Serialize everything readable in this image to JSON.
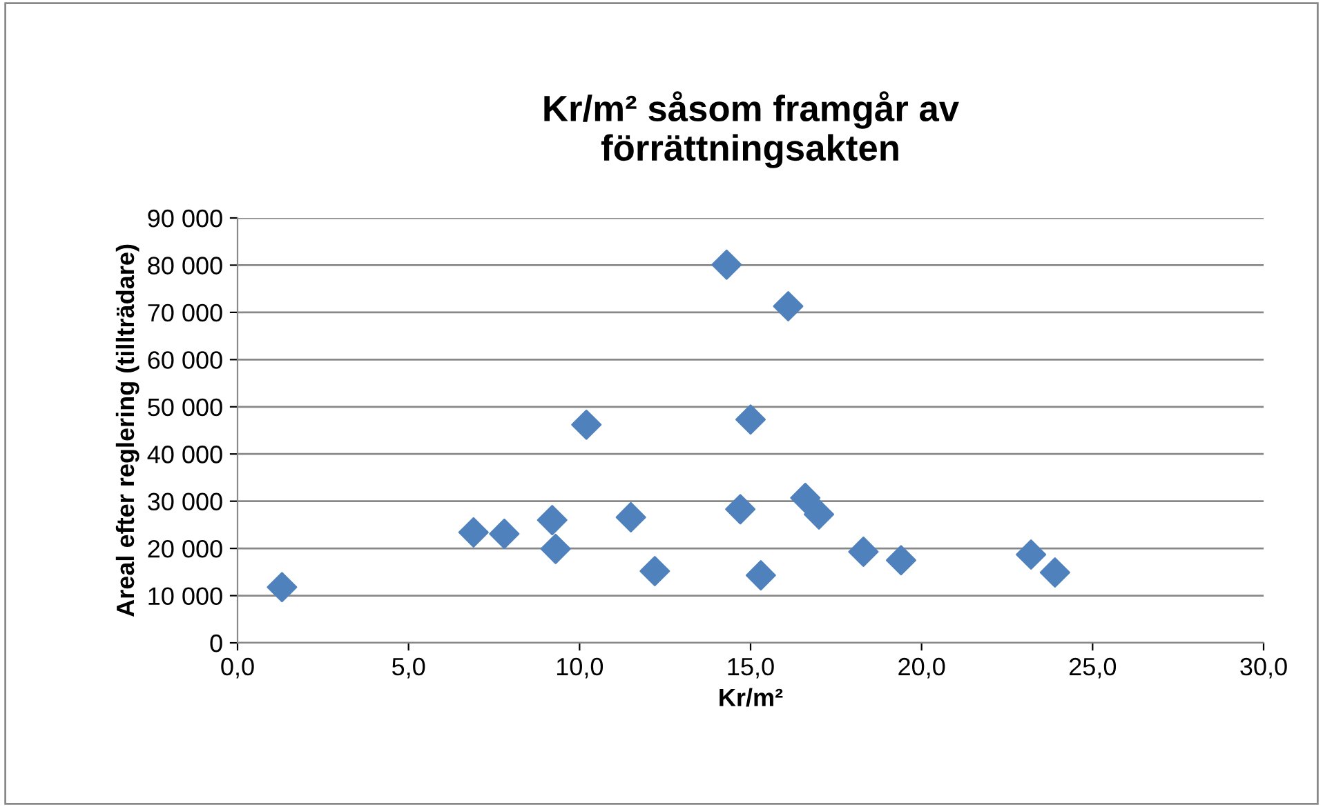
{
  "chart_data": {
    "type": "scatter",
    "title": "Kr/m² såsom framgår av\nförrättningsakten",
    "xlabel": "Kr/m²",
    "ylabel": "Areal efter reglering (tillträdare)",
    "x": [
      1.3,
      6.9,
      7.8,
      9.2,
      9.3,
      10.2,
      11.5,
      12.2,
      14.3,
      14.7,
      15.0,
      15.3,
      16.1,
      16.6,
      17.0,
      18.3,
      19.4,
      23.2,
      23.9
    ],
    "series": [
      {
        "color": "#4f81bd",
        "values": [
          11800,
          23400,
          23100,
          26000,
          19900,
          46200,
          26600,
          15200,
          80100,
          28300,
          47300,
          14300,
          71300,
          30700,
          27200,
          19300,
          17500,
          18700,
          14900
        ]
      }
    ],
    "xlim": [
      0,
      30
    ],
    "ylim": [
      0,
      90000
    ],
    "xticks": [
      {
        "value": 0,
        "label": "0,0"
      },
      {
        "value": 5,
        "label": "5,0"
      },
      {
        "value": 10,
        "label": "10,0"
      },
      {
        "value": 15,
        "label": "15,0"
      },
      {
        "value": 20,
        "label": "20,0"
      },
      {
        "value": 25,
        "label": "25,0"
      },
      {
        "value": 30,
        "label": "30,0"
      }
    ],
    "yticks": [
      0,
      {
        "value": 10000,
        "label": "10 000"
      },
      {
        "value": 20000,
        "label": "20 000"
      },
      {
        "value": 30000,
        "label": "30 000"
      },
      {
        "value": 40000,
        "label": "40 000"
      },
      {
        "value": 50000,
        "label": "50 000"
      },
      {
        "value": 60000,
        "label": "60 000"
      },
      {
        "value": 70000,
        "label": "70 000"
      },
      {
        "value": 80000,
        "label": "80 000"
      },
      {
        "value": 90000,
        "label": "90 000"
      }
    ],
    "grid": "y",
    "marker": "diamond",
    "legend": false
  }
}
